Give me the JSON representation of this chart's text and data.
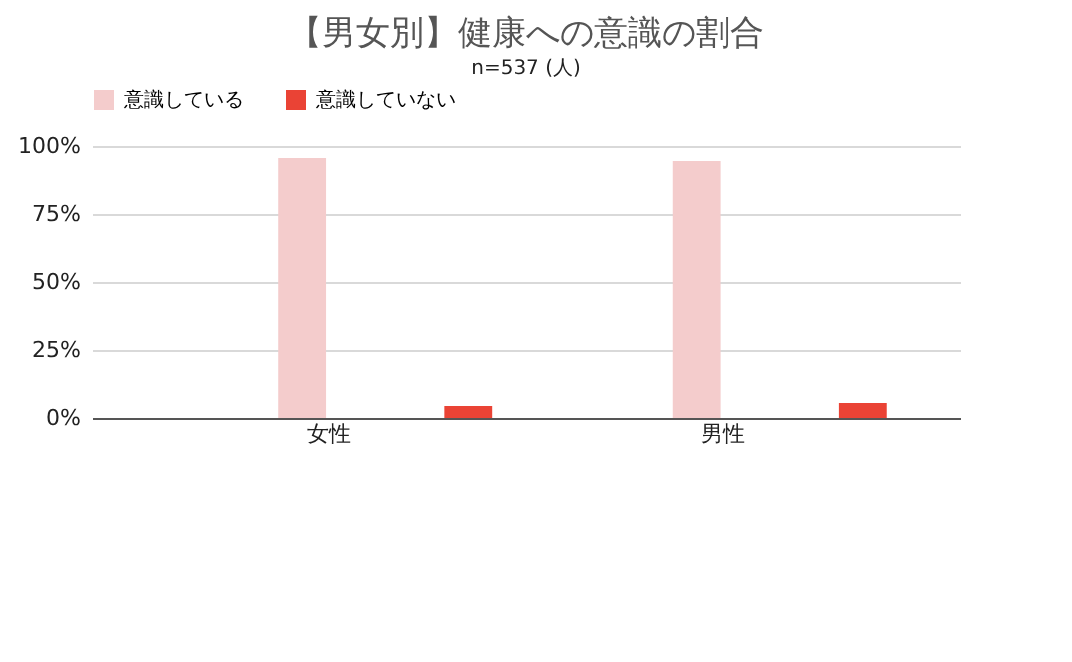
{
  "chart_data": {
    "type": "bar",
    "title": "【男女別】健康への意識の割合",
    "subtitle": "n=537 (人)",
    "categories": [
      "女性",
      "男性"
    ],
    "series": [
      {
        "name": "意識している",
        "color": "#f4cccc",
        "values": [
          95.6,
          94.5
        ]
      },
      {
        "name": "意識していない",
        "color": "#ea4335",
        "values": [
          4.4,
          5.5
        ]
      }
    ],
    "ylim": [
      0,
      100
    ],
    "yticks": [
      {
        "value": 0,
        "label": "0%"
      },
      {
        "value": 25,
        "label": "25%"
      },
      {
        "value": 50,
        "label": "50%"
      },
      {
        "value": 75,
        "label": "75%"
      },
      {
        "value": 100,
        "label": "100%"
      }
    ],
    "grid": "y",
    "legend": "top"
  }
}
